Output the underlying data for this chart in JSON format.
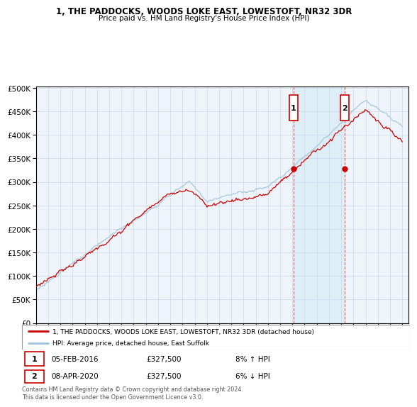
{
  "title": "1, THE PADDOCKS, WOODS LOKE EAST, LOWESTOFT, NR32 3DR",
  "subtitle": "Price paid vs. HM Land Registry's House Price Index (HPI)",
  "legend_line1": "1, THE PADDOCKS, WOODS LOKE EAST, LOWESTOFT, NR32 3DR (detached house)",
  "legend_line2": "HPI: Average price, detached house, East Suffolk",
  "annotation1_date": "05-FEB-2016",
  "annotation1_price": "£327,500",
  "annotation1_hpi": "8% ↑ HPI",
  "annotation2_date": "08-APR-2020",
  "annotation2_price": "£327,500",
  "annotation2_hpi": "6% ↓ HPI",
  "copyright": "Contains HM Land Registry data © Crown copyright and database right 2024.\nThis data is licensed under the Open Government Licence v3.0.",
  "xmin": 1995.0,
  "xmax": 2025.5,
  "ymin": 0,
  "ymax": 500000,
  "yticks": [
    0,
    50000,
    100000,
    150000,
    200000,
    250000,
    300000,
    350000,
    400000,
    450000,
    500000
  ],
  "red_line_color": "#cc0000",
  "blue_line_color": "#9ec4dd",
  "shade_color": "#ddeef7",
  "plot_bg": "#eef4f9",
  "shade_start": 2016.08,
  "shade_end": 2020.27,
  "vline1_x": 2016.08,
  "vline2_x": 2020.27,
  "marker1_x": 2016.08,
  "marker1_y": 327500,
  "marker2_x": 2020.27,
  "marker2_y": 327500
}
